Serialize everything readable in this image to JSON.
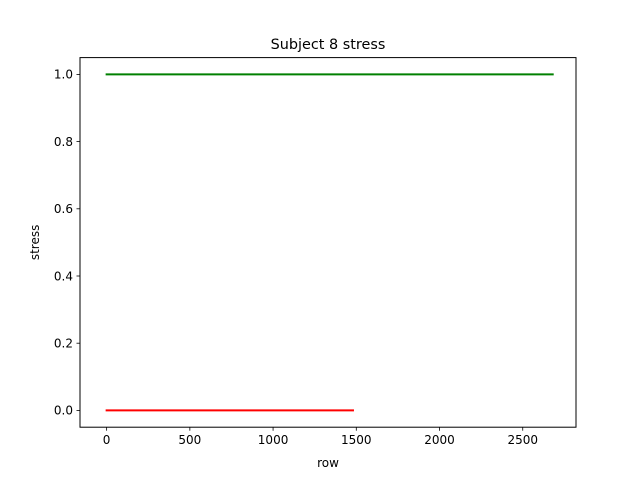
{
  "chart_data": {
    "type": "line",
    "title": "Subject 8 stress",
    "xlabel": "row",
    "ylabel": "stress",
    "xlim": [
      -160,
      2820
    ],
    "ylim": [
      -0.05,
      1.05
    ],
    "xticks": [
      0,
      500,
      1000,
      1500,
      2000,
      2500
    ],
    "xtick_labels": [
      "0",
      "500",
      "1000",
      "1500",
      "2000",
      "2500"
    ],
    "yticks": [
      0.0,
      0.2,
      0.4,
      0.6,
      0.8,
      1.0
    ],
    "ytick_labels": [
      "0.0",
      "0.2",
      "0.4",
      "0.6",
      "0.8",
      "1.0"
    ],
    "grid": false,
    "legend": "none",
    "series": [
      {
        "color": "#ff0000",
        "x": [
          0,
          1480
        ],
        "y": [
          0,
          0
        ]
      },
      {
        "color": "#008000",
        "x": [
          0,
          2680
        ],
        "y": [
          1,
          1
        ]
      }
    ]
  }
}
